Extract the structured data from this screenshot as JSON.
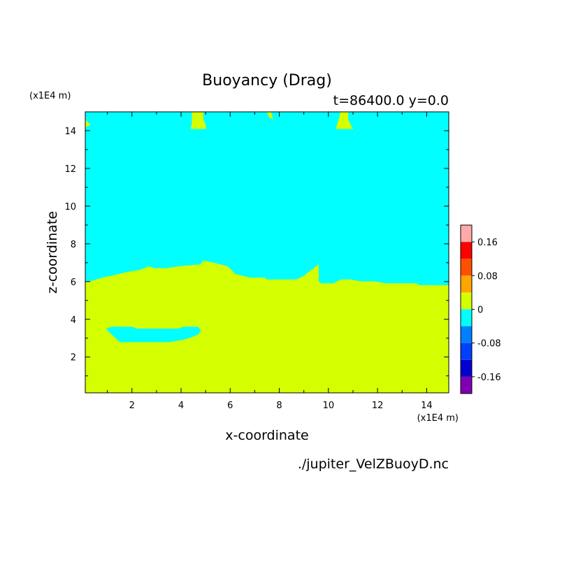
{
  "chart_data": {
    "type": "heatmap",
    "title": "Buoyancy (Drag)",
    "subtitle": "t=86400.0 y=0.0",
    "xlabel": "x-coordinate",
    "ylabel": "z-coordinate",
    "x_unit": "(x1E4 m)",
    "y_unit": "(x1E4 m)",
    "source_file": "./jupiter_VelZBuoyD.nc",
    "xlim": [
      0.1,
      14.9
    ],
    "ylim": [
      0.1,
      15.0
    ],
    "x_ticks": [
      2,
      4,
      6,
      8,
      10,
      12,
      14
    ],
    "y_ticks": [
      2,
      4,
      6,
      8,
      10,
      12,
      14
    ],
    "colorbar": {
      "levels": [
        -0.2,
        -0.16,
        -0.12,
        -0.08,
        -0.04,
        0,
        0.04,
        0.08,
        0.12,
        0.16,
        0.2
      ],
      "colors": [
        "#7f00b2",
        "#0000d0",
        "#0040ff",
        "#0080ff",
        "#00ffff",
        "#d4ff00",
        "#ffa500",
        "#ff5000",
        "#ff0000",
        "#ffaaaa"
      ],
      "tick_labels": [
        {
          "value": 0.16,
          "label": "0.16"
        },
        {
          "value": 0.08,
          "label": "0.08"
        },
        {
          "value": 0,
          "label": "0"
        },
        {
          "value": -0.08,
          "label": "-0.08"
        },
        {
          "value": -0.16,
          "label": "-0.16"
        }
      ]
    },
    "regions": [
      {
        "level": "0 to 0.04",
        "color": "#d4ff00",
        "boundary": [
          [
            0.1,
            0.1
          ],
          [
            14.9,
            0.1
          ],
          [
            14.9,
            5.8
          ],
          [
            13.7,
            5.8
          ],
          [
            13.6,
            5.9
          ],
          [
            12.3,
            5.9
          ],
          [
            11.9,
            6.0
          ],
          [
            11.3,
            6.0
          ],
          [
            10.9,
            6.1
          ],
          [
            10.5,
            6.1
          ],
          [
            10.2,
            5.9
          ],
          [
            9.7,
            5.9
          ],
          [
            9.6,
            6.0
          ],
          [
            9.6,
            6.9
          ],
          [
            9.0,
            6.3
          ],
          [
            8.7,
            6.1
          ],
          [
            7.5,
            6.1
          ],
          [
            7.4,
            6.2
          ],
          [
            6.8,
            6.2
          ],
          [
            6.5,
            6.3
          ],
          [
            6.2,
            6.4
          ],
          [
            5.9,
            6.8
          ],
          [
            5.3,
            7.0
          ],
          [
            4.9,
            7.1
          ],
          [
            4.8,
            6.9
          ],
          [
            3.9,
            6.8
          ],
          [
            3.4,
            6.7
          ],
          [
            2.9,
            6.7
          ],
          [
            2.7,
            6.8
          ],
          [
            2.3,
            6.6
          ],
          [
            1.8,
            6.5
          ],
          [
            1.5,
            6.4
          ],
          [
            0.8,
            6.2
          ],
          [
            0.3,
            6.0
          ],
          [
            0.1,
            6.0
          ]
        ]
      },
      {
        "level": "-0.04 to 0",
        "color": "#00ffff",
        "boundary": [
          [
            0.95,
            3.5
          ],
          [
            1.2,
            3.6
          ],
          [
            2.0,
            3.6
          ],
          [
            2.2,
            3.5
          ],
          [
            3.9,
            3.5
          ],
          [
            4.1,
            3.6
          ],
          [
            4.7,
            3.6
          ],
          [
            4.8,
            3.4
          ],
          [
            4.7,
            3.2
          ],
          [
            4.3,
            3.0
          ],
          [
            4.0,
            2.9
          ],
          [
            3.5,
            2.8
          ],
          [
            2.5,
            2.8
          ],
          [
            1.5,
            2.8
          ],
          [
            1.1,
            3.3
          ]
        ]
      },
      {
        "level": "0 to 0.04",
        "color": "#d4ff00",
        "boundary": [
          [
            4.45,
            15.0
          ],
          [
            4.9,
            15.0
          ],
          [
            4.9,
            14.6
          ],
          [
            5.0,
            14.3
          ],
          [
            5.0,
            14.1
          ],
          [
            4.4,
            14.1
          ],
          [
            4.45,
            14.4
          ]
        ]
      },
      {
        "level": "0 to 0.04",
        "color": "#d4ff00",
        "boundary": [
          [
            10.5,
            15.0
          ],
          [
            10.8,
            15.0
          ],
          [
            10.8,
            14.6
          ],
          [
            10.9,
            14.3
          ],
          [
            11.0,
            14.1
          ],
          [
            10.3,
            14.1
          ],
          [
            10.4,
            14.5
          ]
        ]
      },
      {
        "level": "0 to 0.04",
        "color": "#d4ff00",
        "boundary": [
          [
            7.5,
            15.0
          ],
          [
            7.65,
            15.0
          ],
          [
            7.75,
            14.6
          ],
          [
            7.6,
            14.7
          ]
        ]
      },
      {
        "level": "0 to 0.04",
        "color": "#d4ff00",
        "boundary": [
          [
            0.1,
            14.6
          ],
          [
            0.3,
            14.3
          ],
          [
            0.1,
            14.2
          ]
        ]
      }
    ]
  }
}
